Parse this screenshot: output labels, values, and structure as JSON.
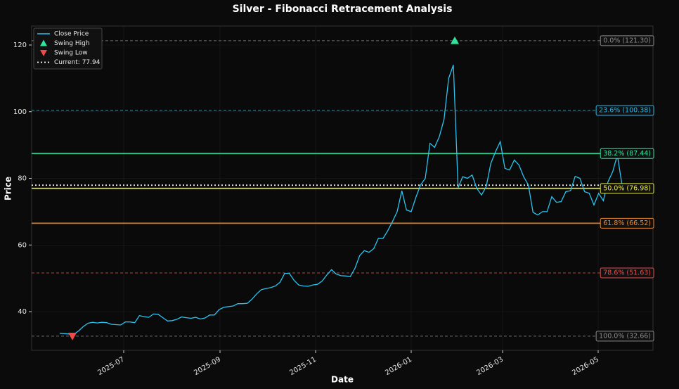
{
  "chart_data": {
    "type": "line",
    "title": "Silver - Fibonacci Retracement Analysis",
    "x_label": "Date",
    "y_label": "Price",
    "xlim": [
      -6,
      126.6
    ],
    "ylim": [
      28.4,
      125.7
    ],
    "xticks": [
      {
        "value": 13.65,
        "label": "2025-07"
      },
      {
        "value": 34.2,
        "label": "2025-09"
      },
      {
        "value": 54.6,
        "label": "2025-11"
      },
      {
        "value": 75.0,
        "label": "2026-01"
      },
      {
        "value": 94.5,
        "label": "2026-03"
      },
      {
        "value": 114.9,
        "label": "2026-05"
      }
    ],
    "yticks": [
      40,
      60,
      80,
      100,
      120
    ],
    "grid": true,
    "legend": "upper left",
    "series": [
      {
        "name": "Close Price",
        "color": "#29c4f0",
        "values": [
          33.5,
          33.4,
          33.3,
          33.2,
          34.2,
          35.5,
          36.5,
          36.8,
          36.6,
          36.8,
          36.7,
          36.2,
          36.1,
          36.0,
          36.9,
          36.9,
          36.7,
          38.8,
          38.5,
          38.3,
          39.3,
          39.2,
          38.2,
          37.2,
          37.3,
          37.7,
          38.4,
          38.2,
          38.0,
          38.3,
          37.8,
          38.1,
          39.0,
          39.0,
          40.6,
          41.3,
          41.5,
          41.7,
          42.4,
          42.4,
          42.5,
          43.7,
          45.3,
          46.6,
          46.9,
          47.2,
          47.7,
          48.8,
          51.5,
          51.5,
          49.4,
          48.0,
          47.7,
          47.6,
          48.0,
          48.2,
          49.2,
          51.0,
          52.6,
          51.3,
          50.8,
          50.7,
          50.5,
          53.0,
          56.8,
          58.3,
          57.8,
          58.9,
          62.0,
          62.0,
          64.3,
          67.0,
          70.0,
          76.3,
          70.5,
          70.0,
          74.3,
          78.0,
          80.0,
          90.5,
          89.3,
          92.5,
          97.7,
          110.0,
          114.0,
          77.2,
          80.5,
          80.0,
          81.0,
          77.0,
          75.0,
          77.5,
          84.5,
          88.0,
          91.0,
          83.0,
          82.5,
          85.5,
          84.0,
          80.5,
          78.0,
          69.8,
          69.0,
          70.0,
          70.0,
          74.5,
          72.8,
          73.0,
          76.0,
          76.3,
          80.6,
          80.0,
          76.0,
          75.5,
          72.0,
          75.5,
          73.3,
          79.0,
          82.0,
          87.0,
          77.94
        ]
      }
    ],
    "markers": [
      {
        "name": "Swing High",
        "color": "#2ee59d",
        "shape": "triangle-up",
        "x": [
          84.3
        ],
        "values": [
          121.3
        ]
      },
      {
        "name": "Swing Low",
        "color": "#f04a4a",
        "shape": "triangle-down",
        "x": [
          2.7
        ],
        "values": [
          32.66
        ]
      }
    ],
    "current": {
      "name": "Current: 77.94",
      "value": 77.94,
      "color": "#ffffff"
    },
    "levels": [
      {
        "label": "0.0% (121.30)",
        "value": 121.3,
        "color": "#8a8a8a",
        "dashed": true
      },
      {
        "label": "23.6% (100.38)",
        "value": 100.38,
        "color": "#29b6e8",
        "dashed": true
      },
      {
        "label": "38.2% (87.44)",
        "value": 87.44,
        "color": "#2ee59d",
        "dashed": false
      },
      {
        "label": "50.0% (76.98)",
        "value": 76.98,
        "color": "#e8e84a",
        "dashed": false
      },
      {
        "label": "61.8% (66.52)",
        "value": 66.52,
        "color": "#ef8a2e",
        "dashed": false
      },
      {
        "label": "78.6% (51.63)",
        "value": 51.63,
        "color": "#e05050",
        "dashed": true
      },
      {
        "label": "100.0% (32.66)",
        "value": 32.66,
        "color": "#8a8a8a",
        "dashed": true
      }
    ]
  }
}
